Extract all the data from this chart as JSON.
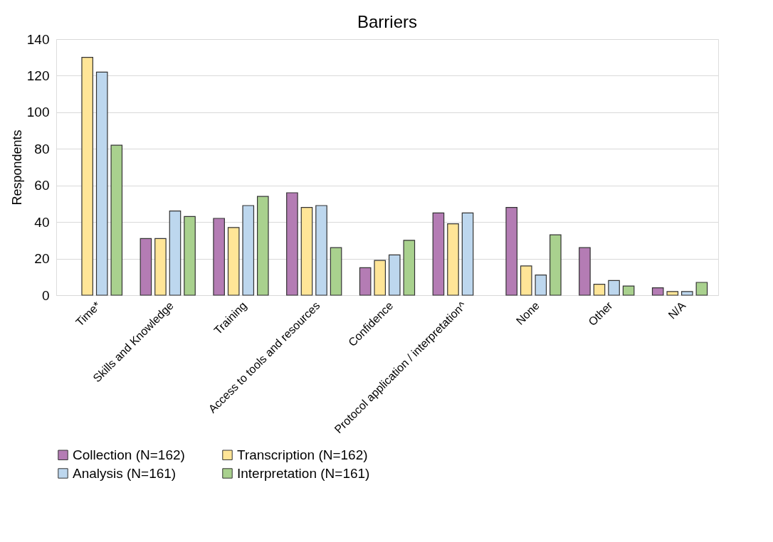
{
  "chart_data": {
    "type": "bar",
    "title": "Barriers",
    "ylabel": "Respondents",
    "categories": [
      "Time*",
      "Skills and Knowledge",
      "Training",
      "Access to tools and resources",
      "Confidence",
      "Protocol application / interpretation^",
      "None",
      "Other",
      "N/A"
    ],
    "series": [
      {
        "name": "Collection (N=162)",
        "color": "#b47cb4",
        "values": [
          null,
          31,
          42,
          56,
          15,
          45,
          48,
          26,
          4
        ]
      },
      {
        "name": "Transcription (N=162)",
        "color": "#ffe597",
        "values": [
          130,
          31,
          37,
          48,
          19,
          39,
          16,
          6,
          2
        ]
      },
      {
        "name": "Analysis (N=161)",
        "color": "#bdd7ee",
        "values": [
          122,
          46,
          49,
          49,
          22,
          45,
          11,
          8,
          2
        ]
      },
      {
        "name": "Interpretation (N=161)",
        "color": "#a9d18e",
        "values": [
          82,
          43,
          54,
          26,
          30,
          null,
          33,
          5,
          7
        ]
      }
    ],
    "ylim": [
      0,
      140
    ],
    "yticks": [
      0,
      20,
      40,
      60,
      80,
      100,
      120,
      140
    ],
    "grid": "y",
    "legend": "bottom"
  }
}
